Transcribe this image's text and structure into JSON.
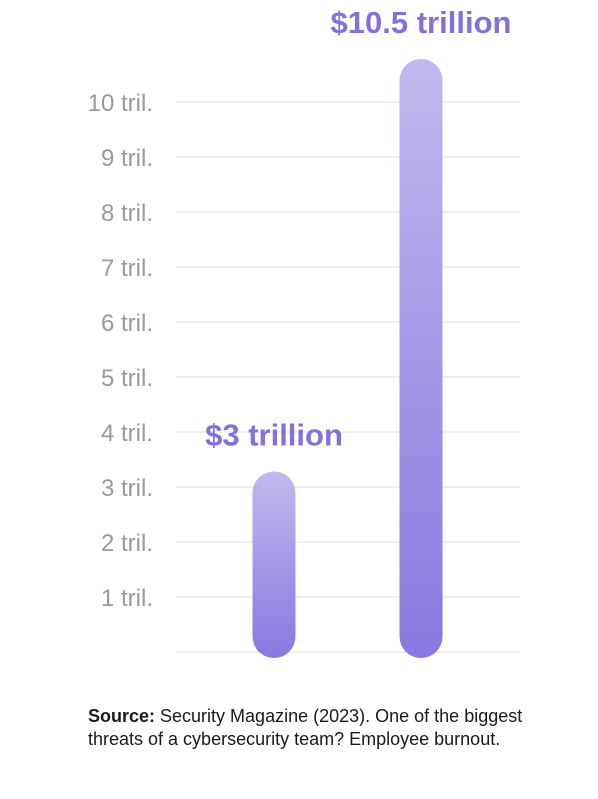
{
  "chart_data": {
    "type": "bar",
    "categories": [
      "",
      ""
    ],
    "values": [
      3,
      10.5
    ],
    "data_labels": [
      "$3 trillion",
      "$10.5 trillion"
    ],
    "y_tick_labels": [
      "1 tril.",
      "2 tril.",
      "3 tril.",
      "4 tril.",
      "5 tril.",
      "6 tril.",
      "7 tril.",
      "8 tril.",
      "9 tril.",
      "10 tril."
    ],
    "y_ticks": [
      1,
      2,
      3,
      4,
      5,
      6,
      7,
      8,
      9,
      10
    ],
    "ylim": [
      0,
      10
    ],
    "grid": true,
    "title": "",
    "xlabel": "",
    "ylabel": "",
    "colors": {
      "bar_top": "#c2b8ee",
      "bar_bottom": "#8a77e0",
      "label": "#8470dc",
      "tick": "#9a9a9a",
      "grid": "#e2e2e2"
    }
  },
  "source": {
    "label": "Source:",
    "text": " Security Magazine (2023). One of the biggest threats of a cybersecurity team? Employee burnout."
  }
}
